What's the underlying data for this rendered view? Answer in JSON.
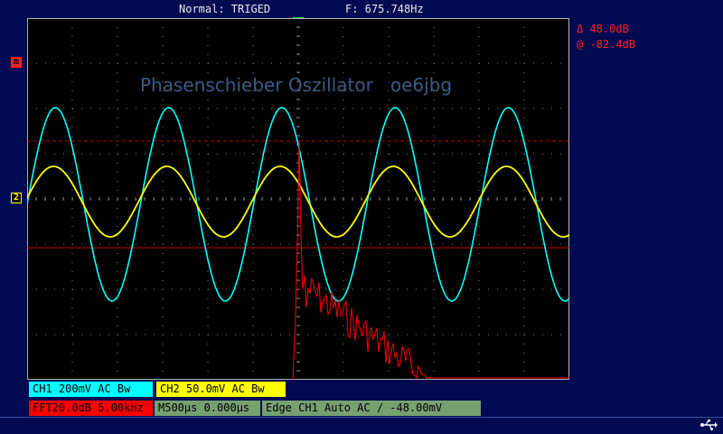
{
  "header": {
    "mode": "Normal: TRIGED",
    "frequency": "F: 675.748Hz"
  },
  "overlay_title": "Phasenschieber Oszillator   oe6jbg",
  "cursors": {
    "delta": "Δ  48.0dB",
    "at": "@  -82.4dB"
  },
  "markers": {
    "math": "m",
    "ch2": "2",
    "trigger": "T"
  },
  "channels": {
    "ch1": "CH1  200mV  AC  Bw",
    "ch2": "CH2  50.0mV  AC  Bw"
  },
  "bottom": {
    "fft": "FFT20.0dB 5.00kHz",
    "timebase": "M500µs  0.000µs",
    "trigger": "Edge  CH1  Auto  AC ∕  -48.00mV"
  },
  "colors": {
    "background": "#000a50",
    "screen": "#000000",
    "grid": "#808080",
    "ch1": "#00ffff",
    "ch2": "#ffff00",
    "math": "#ff0000",
    "trigger_ok": "#00e000"
  },
  "icons": {
    "usb": "usb-icon"
  }
}
